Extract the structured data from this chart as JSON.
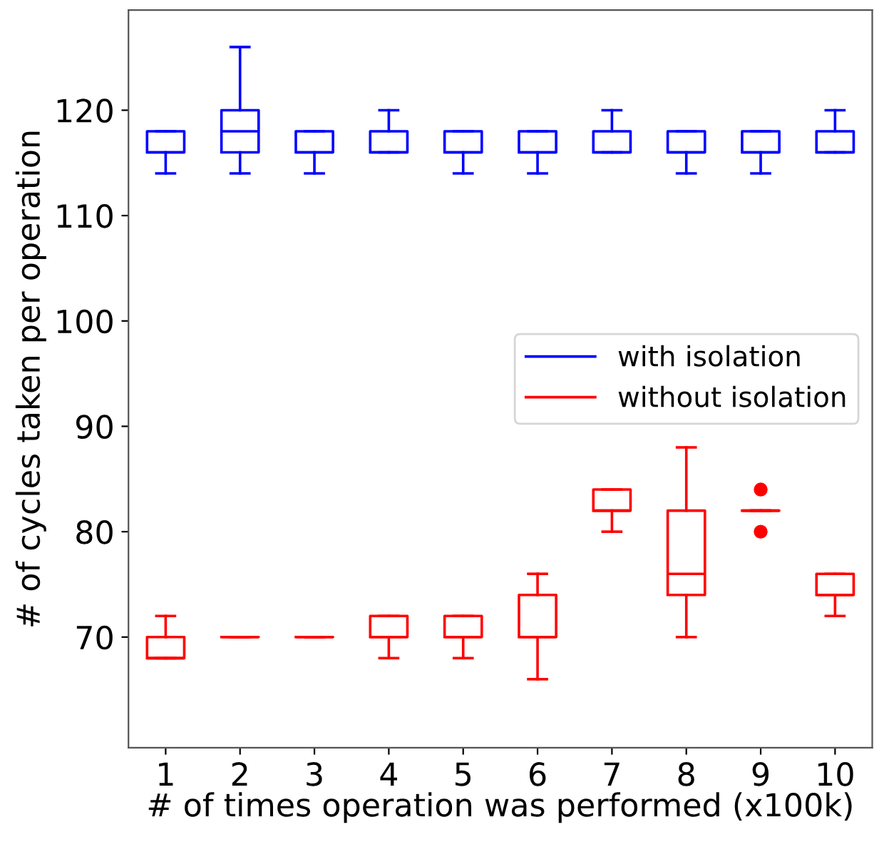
{
  "chart_data": {
    "type": "box",
    "xlabel": "# of times operation was performed (x100k)",
    "ylabel": "# of cycles taken per operation",
    "categories": [
      "1",
      "2",
      "3",
      "4",
      "5",
      "6",
      "7",
      "8",
      "9",
      "10"
    ],
    "ylim": [
      59.5,
      129.5
    ],
    "yticks": [
      70,
      80,
      90,
      100,
      110,
      120
    ],
    "grid": false,
    "legend": "center right",
    "series": [
      {
        "name": "with isolation",
        "color": "#0000ff",
        "boxes": [
          {
            "low": 114,
            "q1": 116,
            "median": 116,
            "q3": 118,
            "high": 118
          },
          {
            "low": 114,
            "q1": 116,
            "median": 118,
            "q3": 120,
            "high": 126
          },
          {
            "low": 114,
            "q1": 116,
            "median": 116,
            "q3": 118,
            "high": 118
          },
          {
            "low": 116,
            "q1": 116,
            "median": 116,
            "q3": 118,
            "high": 120
          },
          {
            "low": 114,
            "q1": 116,
            "median": 116,
            "q3": 118,
            "high": 118
          },
          {
            "low": 114,
            "q1": 116,
            "median": 116,
            "q3": 118,
            "high": 118
          },
          {
            "low": 116,
            "q1": 116,
            "median": 116,
            "q3": 118,
            "high": 120
          },
          {
            "low": 114,
            "q1": 116,
            "median": 116,
            "q3": 118,
            "high": 118
          },
          {
            "low": 114,
            "q1": 116,
            "median": 116,
            "q3": 118,
            "high": 118
          },
          {
            "low": 116,
            "q1": 116,
            "median": 116,
            "q3": 118,
            "high": 120
          }
        ]
      },
      {
        "name": "without isolation",
        "color": "#ff0000",
        "boxes": [
          {
            "low": 68,
            "q1": 68,
            "median": 68,
            "q3": 70,
            "high": 72
          },
          {
            "low": 70,
            "q1": 70,
            "median": 70,
            "q3": 70,
            "high": 70
          },
          {
            "low": 70,
            "q1": 70,
            "median": 70,
            "q3": 70,
            "high": 70
          },
          {
            "low": 68,
            "q1": 70,
            "median": 70,
            "q3": 72,
            "high": 72
          },
          {
            "low": 68,
            "q1": 70,
            "median": 70,
            "q3": 72,
            "high": 72
          },
          {
            "low": 66,
            "q1": 70,
            "median": 70,
            "q3": 74,
            "high": 76
          },
          {
            "low": 80,
            "q1": 82,
            "median": 82,
            "q3": 84,
            "high": 84
          },
          {
            "low": 70,
            "q1": 74,
            "median": 76,
            "q3": 82,
            "high": 88
          },
          {
            "low": 82,
            "q1": 82,
            "median": 82,
            "q3": 82,
            "high": 82,
            "outliers": [
              84,
              80
            ]
          },
          {
            "low": 72,
            "q1": 74,
            "median": 74,
            "q3": 76,
            "high": 76
          }
        ]
      }
    ]
  }
}
